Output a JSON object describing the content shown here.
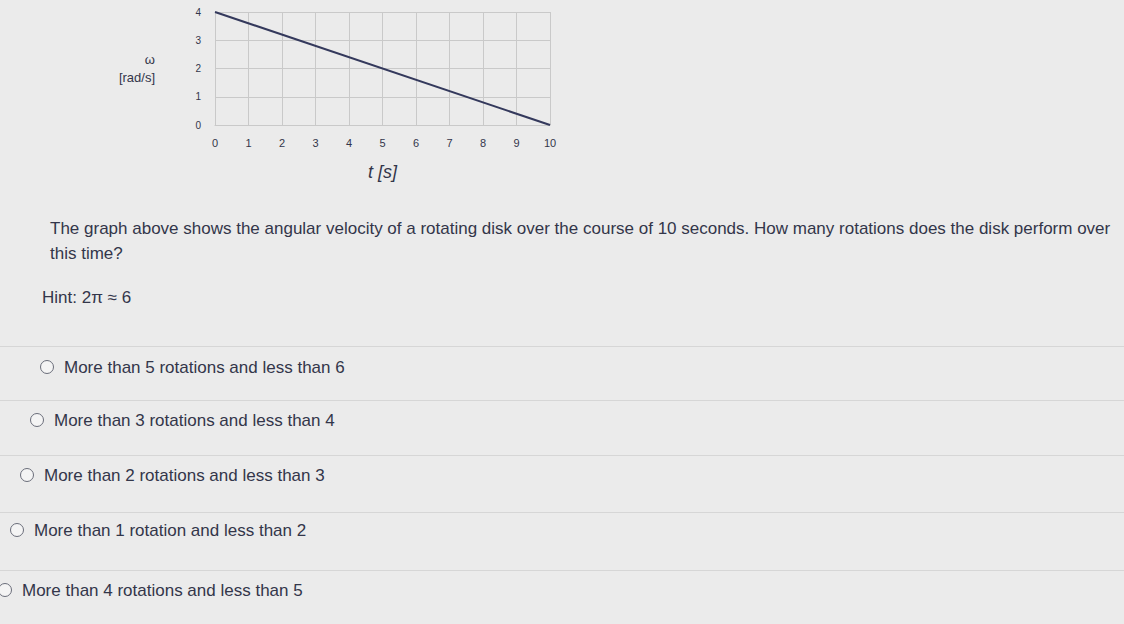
{
  "chart_data": {
    "type": "line",
    "xlabel": "t [s]",
    "ylabel": "ω\n[rad/s]",
    "x": [
      0,
      10
    ],
    "values": [
      4,
      0
    ],
    "color": "#34395c",
    "marker": "none",
    "xlim": [
      0,
      10
    ],
    "xticks": [
      0,
      1,
      2,
      3,
      4,
      5,
      6,
      7,
      8,
      9,
      10
    ],
    "ylim": [
      0,
      4
    ],
    "yticks": [
      0,
      1,
      2,
      3,
      4
    ],
    "grid": true
  },
  "question": "The graph above shows the angular velocity of a rotating disk over the course of 10 seconds. How many rotations does the disk perform over this time?",
  "hint": "Hint: 2π ≈ 6",
  "options": [
    "More than 5 rotations and less than 6",
    "More than 3 rotations and less than 4",
    "More than 2 rotations and less than 3",
    "More than 1 rotation and less than 2",
    "More than 4 rotations and less than 5"
  ]
}
